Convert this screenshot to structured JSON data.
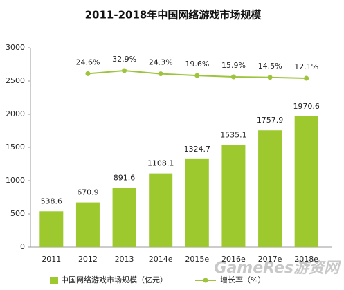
{
  "chart_data": {
    "type": "bar-line",
    "title": "2011-2018年中国网络游戏市场规模",
    "categories": [
      "2011",
      "2012",
      "2013",
      "2014e",
      "2015e",
      "2016e",
      "2017e",
      "2018e"
    ],
    "series": [
      {
        "name": "中国网络游戏市场规模（亿元）",
        "color": "#9dc92f",
        "type": "bar",
        "values": [
          538.6,
          670.9,
          891.6,
          1108.1,
          1324.7,
          1535.1,
          1757.9,
          1970.6
        ]
      },
      {
        "name": "增长率（%）",
        "color": "#9dc43c",
        "type": "line",
        "axis": "y2",
        "values": [
          null,
          24.6,
          32.9,
          24.3,
          19.6,
          15.9,
          14.5,
          12.1
        ],
        "value_labels": [
          null,
          "24.6%",
          "32.9%",
          "24.3%",
          "19.6%",
          "15.9%",
          "14.5%",
          "12.1%"
        ]
      }
    ],
    "ylim": [
      0,
      3000
    ],
    "yticks": [
      0,
      500,
      1000,
      1500,
      2000,
      2500,
      3000
    ],
    "y2lim": [
      -447,
      95
    ],
    "legend": "bottom",
    "watermark": "GameRes游资网"
  }
}
